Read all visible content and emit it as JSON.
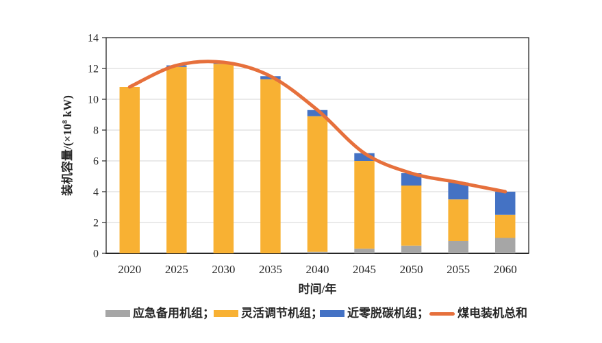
{
  "colors": {
    "background": "#FFFFFF",
    "grid": "#D6D6D6",
    "axis": "#262626",
    "text": "#262626"
  },
  "chart_data": {
    "type": "bar",
    "subtype": "stacked-bars-with-total-line",
    "title": "",
    "xlabel": "时间/年",
    "ylabel": "装机容量/(×10⁸ kW)",
    "ylabel_parts": {
      "prefix": "装机容量/(×10",
      "sup": "8",
      "suffix": " kW)"
    },
    "ylim": [
      0,
      14
    ],
    "yticks": [
      0,
      2,
      4,
      6,
      8,
      10,
      12,
      14
    ],
    "grid": "horizontal",
    "legend_position": "bottom",
    "categories": [
      "2020",
      "2025",
      "2030",
      "2035",
      "2040",
      "2045",
      "2050",
      "2055",
      "2060"
    ],
    "series": [
      {
        "name": "应急备用机组",
        "color": "#A6A6A6",
        "values": [
          0,
          0,
          0,
          0,
          0.1,
          0.3,
          0.5,
          0.8,
          1.0
        ]
      },
      {
        "name": "灵活调节机组",
        "color": "#F8B133",
        "values": [
          10.8,
          12.1,
          12.3,
          11.3,
          8.8,
          5.7,
          3.9,
          2.7,
          1.5
        ]
      },
      {
        "name": "近零脱碳机组",
        "color": "#4472C4",
        "values": [
          0,
          0.1,
          0.1,
          0.2,
          0.4,
          0.5,
          0.8,
          1.1,
          1.5
        ]
      }
    ],
    "line_series": {
      "name": "煤电装机总和",
      "color": "#E6703C",
      "values": [
        10.8,
        12.2,
        12.4,
        11.5,
        9.3,
        6.5,
        5.2,
        4.6,
        4.0
      ]
    },
    "legend": [
      {
        "label": "应急备用机组；",
        "type": "swatch",
        "color": "#A6A6A6"
      },
      {
        "label": "灵活调节机组；",
        "type": "swatch",
        "color": "#F8B133"
      },
      {
        "label": "近零脱碳机组；",
        "type": "swatch",
        "color": "#4472C4"
      },
      {
        "label": "煤电装机总和",
        "type": "line",
        "color": "#E6703C"
      }
    ]
  }
}
